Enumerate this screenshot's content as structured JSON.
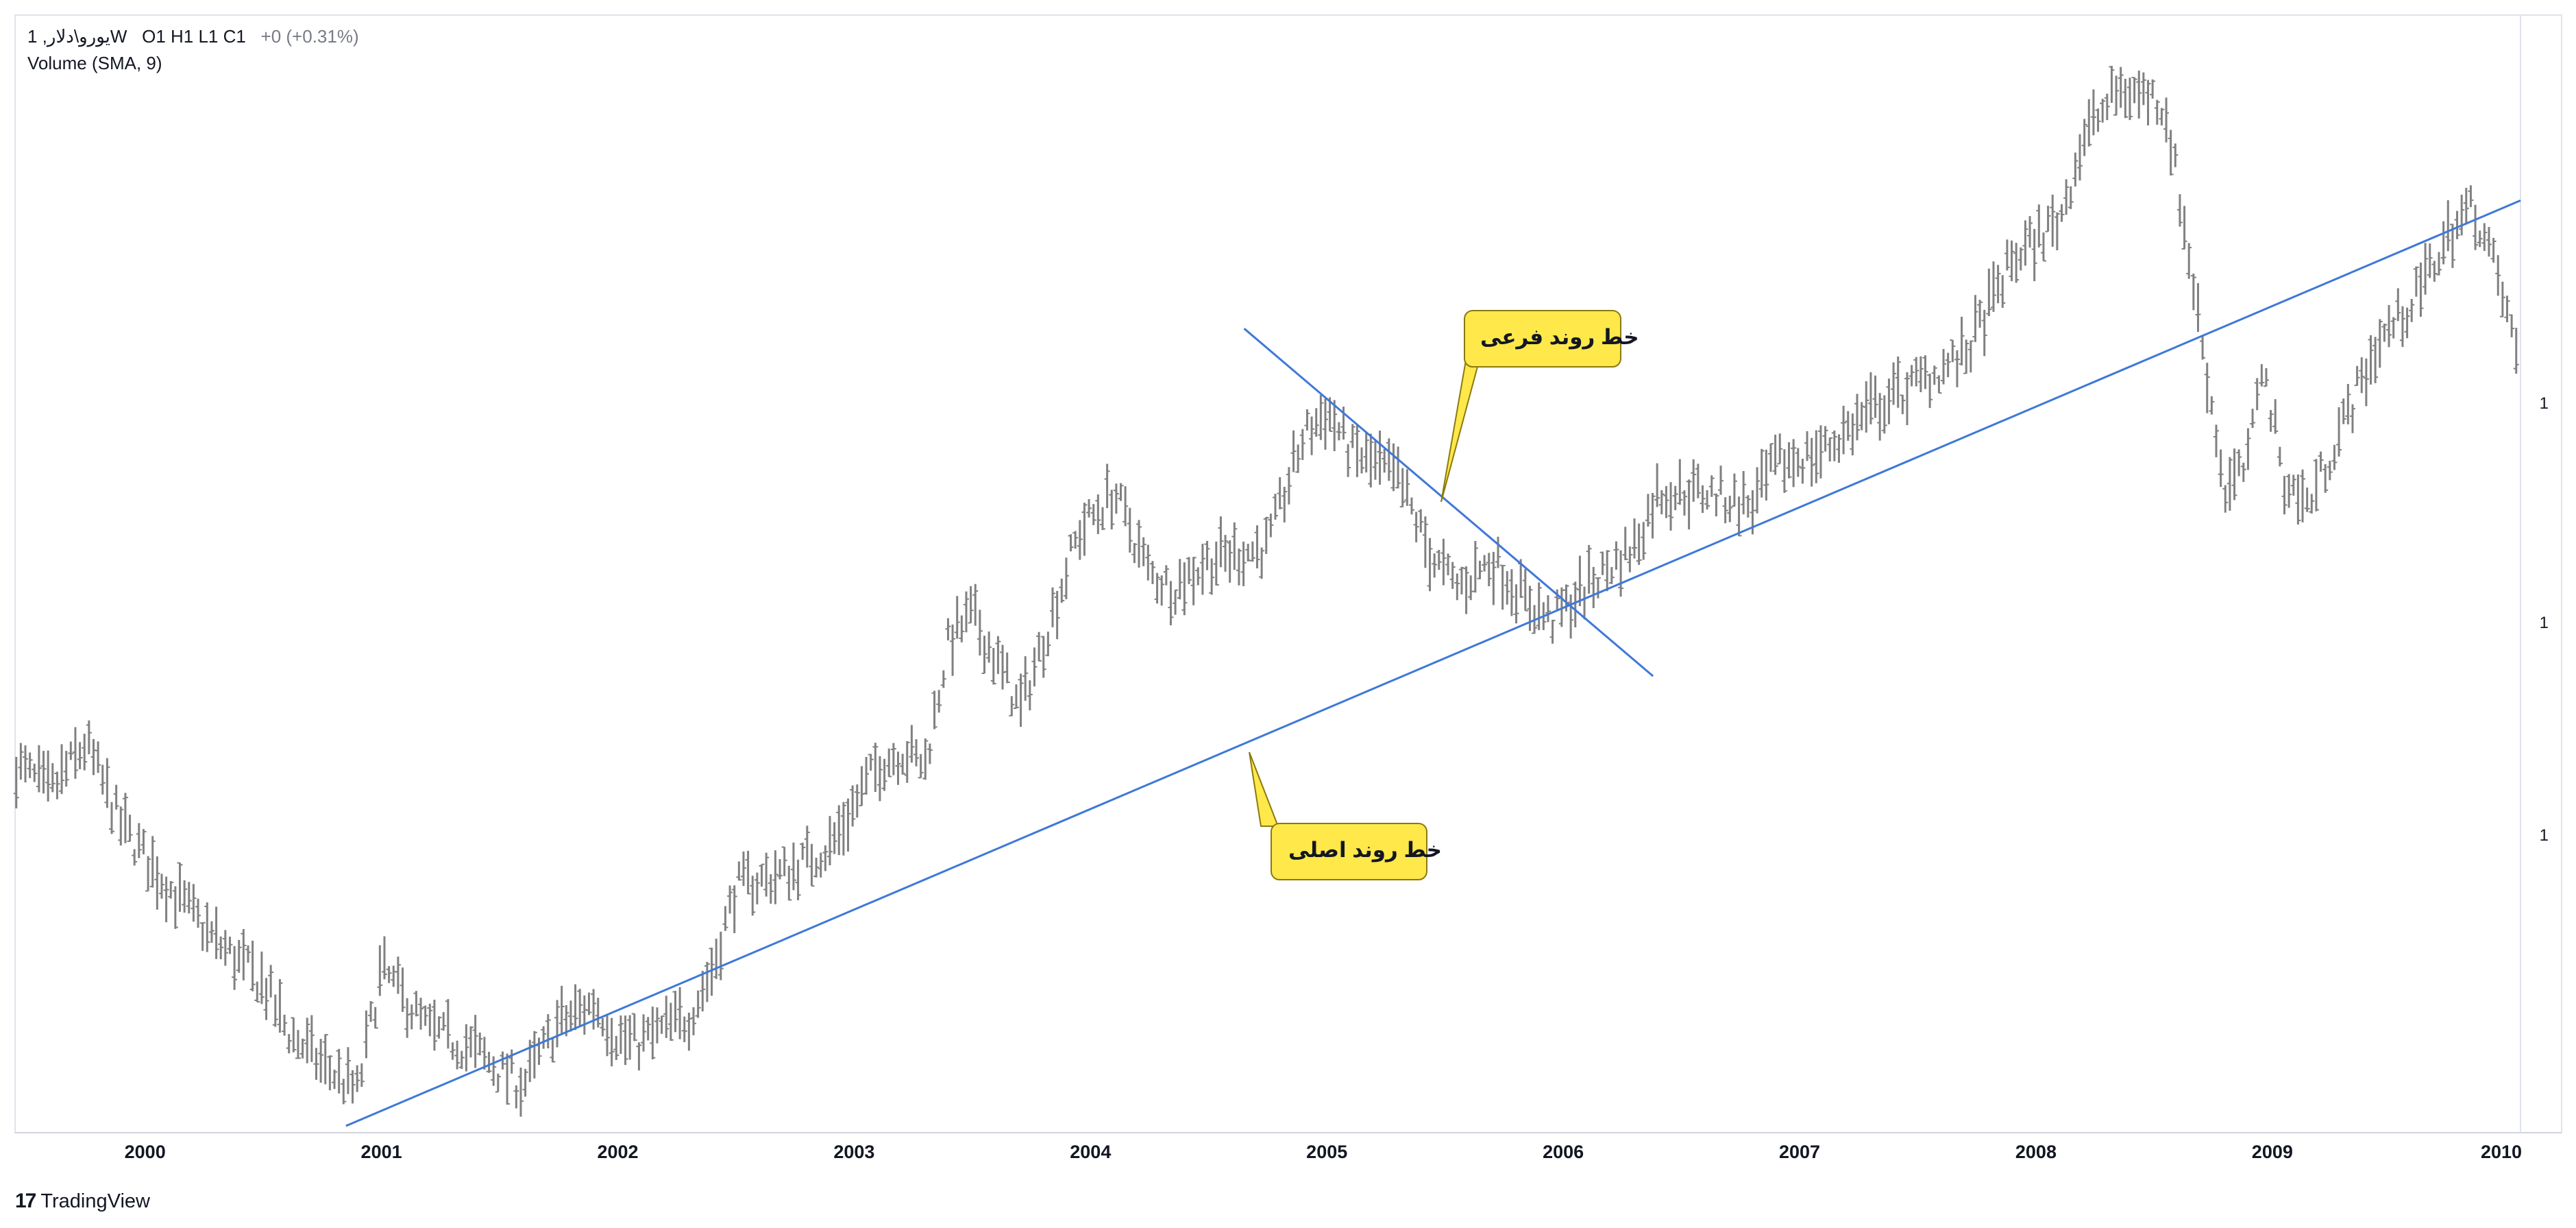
{
  "header": {
    "symbol_line": "1 ,یورو\\دلارW",
    "ohlc": "O1  H1  L1  C1",
    "change": "+0 (+0.31%)",
    "indicator": "Volume (SMA, 9)"
  },
  "price_axis": {
    "labels": [
      "1",
      "1",
      "1"
    ]
  },
  "annotations": {
    "secondary_trendline": "خط روند فرعی",
    "main_trendline": "خط روند اصلی"
  },
  "brand": {
    "logo": "17",
    "name": "TradingView"
  },
  "colors": {
    "bars": "#808080",
    "trendline": "#3f78d8",
    "callout_fill": "#ffe84a",
    "callout_border": "#8a7a10"
  },
  "chart_data": {
    "type": "ohlc",
    "title": "",
    "interval": "W",
    "x_range": [
      1999.45,
      2010.05
    ],
    "y_range": [
      0.8,
      1.62
    ],
    "grid": false,
    "legend": "top-left",
    "xticks": [
      "2000",
      "2001",
      "2002",
      "2003",
      "2004",
      "2005",
      "2006",
      "2007",
      "2008",
      "2009",
      "2010"
    ],
    "price_path": [
      [
        1999.45,
        1.07
      ],
      [
        1999.6,
        1.05
      ],
      [
        1999.75,
        1.085
      ],
      [
        1999.9,
        1.025
      ],
      [
        2000.1,
        0.98
      ],
      [
        2000.3,
        0.94
      ],
      [
        2000.5,
        0.91
      ],
      [
        2000.6,
        0.875
      ],
      [
        2000.75,
        0.85
      ],
      [
        2000.82,
        0.84
      ],
      [
        2000.9,
        0.83
      ],
      [
        2001.0,
        0.92
      ],
      [
        2001.2,
        0.875
      ],
      [
        2001.4,
        0.86
      ],
      [
        2001.5,
        0.845
      ],
      [
        2001.6,
        0.835
      ],
      [
        2001.75,
        0.88
      ],
      [
        2001.9,
        0.895
      ],
      [
        2002.0,
        0.87
      ],
      [
        2002.08,
        0.865
      ],
      [
        2002.3,
        0.885
      ],
      [
        2002.4,
        0.92
      ],
      [
        2002.5,
        0.98
      ],
      [
        2002.7,
        0.99
      ],
      [
        2002.9,
        1.01
      ],
      [
        2003.1,
        1.07
      ],
      [
        2003.2,
        1.08
      ],
      [
        2003.3,
        1.07
      ],
      [
        2003.4,
        1.16
      ],
      [
        2003.5,
        1.18
      ],
      [
        2003.65,
        1.13
      ],
      [
        2003.7,
        1.11
      ],
      [
        2003.8,
        1.16
      ],
      [
        2003.95,
        1.24
      ],
      [
        2004.1,
        1.27
      ],
      [
        2004.25,
        1.21
      ],
      [
        2004.35,
        1.2
      ],
      [
        2004.5,
        1.22
      ],
      [
        2004.75,
        1.23
      ],
      [
        2004.9,
        1.31
      ],
      [
        2005.0,
        1.33
      ],
      [
        2005.1,
        1.3
      ],
      [
        2005.3,
        1.28
      ],
      [
        2005.45,
        1.22
      ],
      [
        2005.55,
        1.2
      ],
      [
        2005.7,
        1.22
      ],
      [
        2005.85,
        1.19
      ],
      [
        2005.95,
        1.175
      ],
      [
        2006.1,
        1.2
      ],
      [
        2006.3,
        1.23
      ],
      [
        2006.4,
        1.27
      ],
      [
        2006.6,
        1.27
      ],
      [
        2006.8,
        1.26
      ],
      [
        2006.9,
        1.29
      ],
      [
        2007.1,
        1.3
      ],
      [
        2007.3,
        1.33
      ],
      [
        2007.5,
        1.35
      ],
      [
        2007.7,
        1.37
      ],
      [
        2007.9,
        1.44
      ],
      [
        2008.1,
        1.47
      ],
      [
        2008.2,
        1.53
      ],
      [
        2008.35,
        1.565
      ],
      [
        2008.5,
        1.56
      ],
      [
        2008.55,
        1.55
      ],
      [
        2008.65,
        1.44
      ],
      [
        2008.8,
        1.27
      ],
      [
        2008.9,
        1.29
      ],
      [
        2008.95,
        1.37
      ],
      [
        2009.05,
        1.28
      ],
      [
        2009.15,
        1.26
      ],
      [
        2009.3,
        1.32
      ],
      [
        2009.45,
        1.38
      ],
      [
        2009.6,
        1.41
      ],
      [
        2009.75,
        1.46
      ],
      [
        2009.85,
        1.48
      ],
      [
        2009.95,
        1.43
      ],
      [
        2010.05,
        1.36
      ]
    ],
    "trendlines": [
      {
        "name": "main",
        "points": [
          [
            2000.85,
            0.805
          ],
          [
            2010.05,
            1.484
          ]
        ]
      },
      {
        "name": "secondary",
        "points": [
          [
            2004.65,
            1.39
          ],
          [
            2006.38,
            1.135
          ]
        ]
      }
    ]
  }
}
